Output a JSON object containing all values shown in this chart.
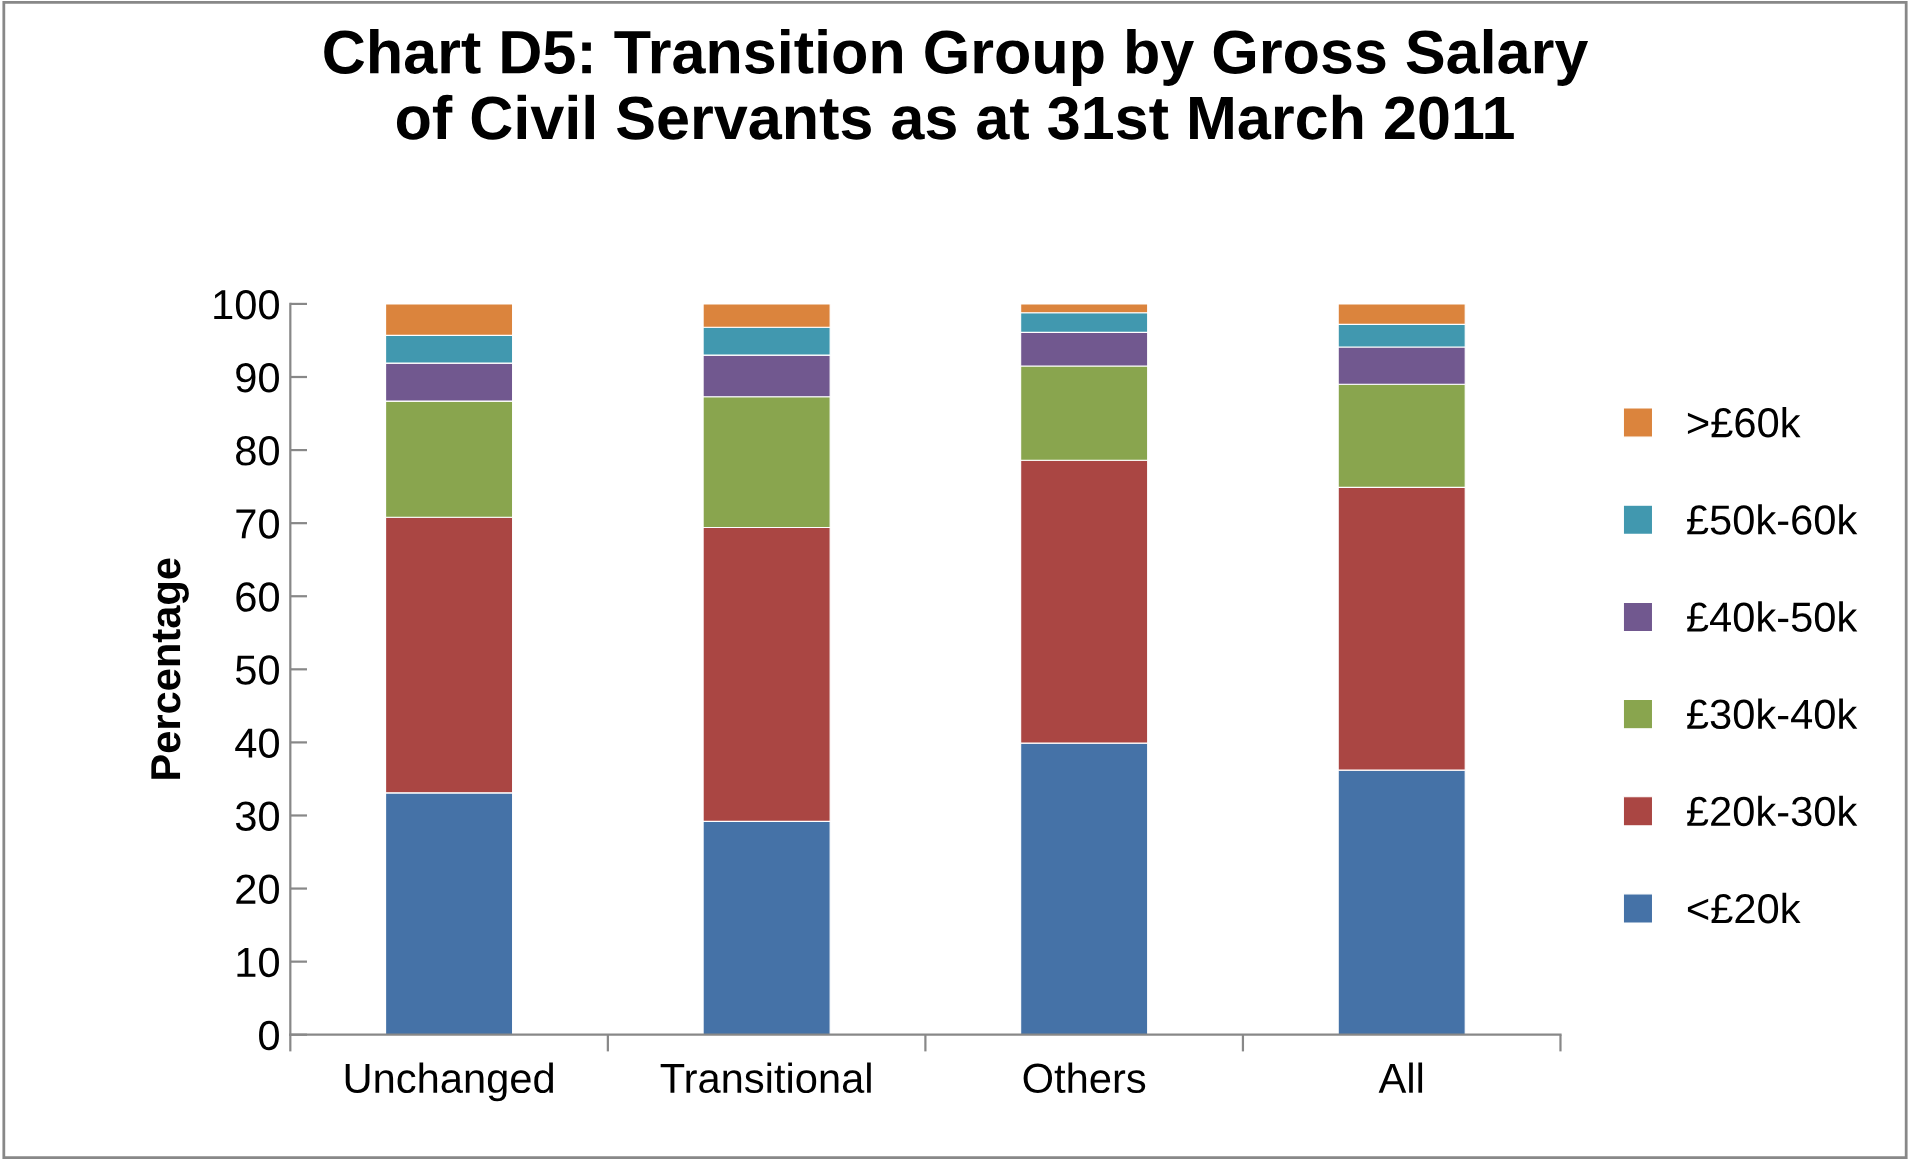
{
  "chart_data": {
    "type": "bar",
    "stacked": true,
    "title": "Chart D5: Transition Group by Gross Salary of Civil Servants as at 31st March 2011",
    "ylabel": "Percentage",
    "categories": [
      "Unchanged",
      "Transitional",
      "Others",
      "All"
    ],
    "series": [
      {
        "name": "<£20k",
        "color": "#4572a7",
        "values": [
          33.1,
          29.2,
          39.9,
          36.2
        ]
      },
      {
        "name": "£20k-30k",
        "color": "#aa4643",
        "values": [
          37.7,
          40.2,
          38.7,
          38.7
        ]
      },
      {
        "name": "£30k-40k",
        "color": "#89a54e",
        "values": [
          15.9,
          17.9,
          12.9,
          14.1
        ]
      },
      {
        "name": "£40k-50k",
        "color": "#71588f",
        "values": [
          5.2,
          5.7,
          4.6,
          5.1
        ]
      },
      {
        "name": "£50k-60k",
        "color": "#4198af",
        "values": [
          3.8,
          3.8,
          2.7,
          3.1
        ]
      },
      {
        "name": ">£60k",
        "color": "#db843d",
        "values": [
          4.3,
          3.2,
          1.2,
          2.8
        ]
      }
    ],
    "ylim": [
      0,
      100
    ],
    "yticks": [
      0,
      10,
      20,
      30,
      40,
      50,
      60,
      70,
      80,
      90,
      100
    ],
    "grid": false,
    "legend": "right"
  }
}
